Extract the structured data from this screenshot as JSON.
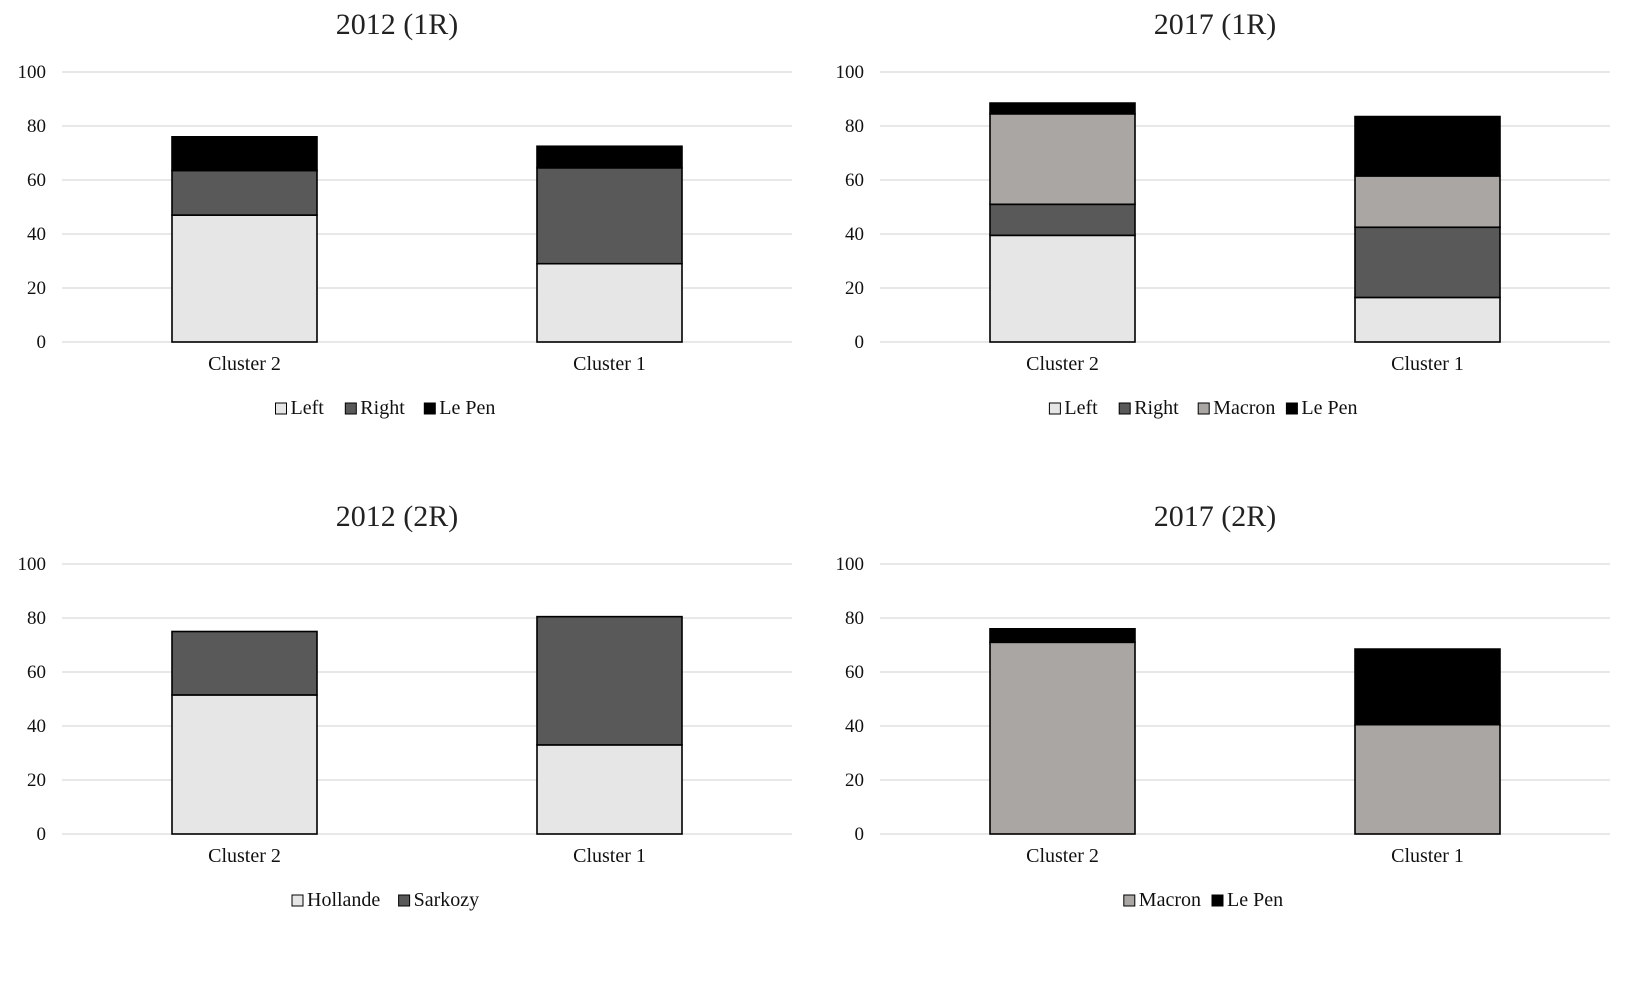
{
  "colors": {
    "Left": "#e6e6e6",
    "Hollande": "#e6e6e6",
    "Right": "#595959",
    "Sarkozy": "#595959",
    "Macron": "#aaa6a4",
    "Le Pen": "#000000"
  },
  "chart_data": [
    {
      "type": "bar",
      "stacked": true,
      "title": "2012 (1R)",
      "categories": [
        "Cluster 2",
        "Cluster 1"
      ],
      "series": [
        {
          "name": "Left",
          "values": [
            47,
            29
          ]
        },
        {
          "name": "Right",
          "values": [
            16.5,
            35.5
          ]
        },
        {
          "name": "Le Pen",
          "values": [
            12.5,
            8
          ]
        }
      ],
      "ylim": [
        0,
        100
      ],
      "yticks": [
        0,
        20,
        40,
        60,
        80,
        100
      ],
      "grid": true,
      "legend": "bottom"
    },
    {
      "type": "bar",
      "stacked": true,
      "title": "2017 (1R)",
      "categories": [
        "Cluster 2",
        "Cluster 1"
      ],
      "series": [
        {
          "name": "Left",
          "values": [
            39.5,
            16.5
          ]
        },
        {
          "name": "Right",
          "values": [
            11.5,
            26
          ]
        },
        {
          "name": "Macron",
          "values": [
            33.5,
            19
          ]
        },
        {
          "name": "Le Pen",
          "values": [
            4,
            22
          ]
        }
      ],
      "ylim": [
        0,
        100
      ],
      "yticks": [
        0,
        20,
        40,
        60,
        80,
        100
      ],
      "grid": true,
      "legend": "bottom"
    },
    {
      "type": "bar",
      "stacked": true,
      "title": "2012 (2R)",
      "categories": [
        "Cluster 2",
        "Cluster 1"
      ],
      "series": [
        {
          "name": "Hollande",
          "values": [
            51.5,
            33
          ]
        },
        {
          "name": "Sarkozy",
          "values": [
            23.5,
            47.5
          ]
        }
      ],
      "ylim": [
        0,
        100
      ],
      "yticks": [
        0,
        20,
        40,
        60,
        80,
        100
      ],
      "grid": true,
      "legend": "bottom"
    },
    {
      "type": "bar",
      "stacked": true,
      "title": "2017 (2R)",
      "categories": [
        "Cluster 2",
        "Cluster 1"
      ],
      "series": [
        {
          "name": "Macron",
          "values": [
            71,
            40.5
          ]
        },
        {
          "name": "Le Pen",
          "values": [
            5,
            28
          ]
        }
      ],
      "ylim": [
        0,
        100
      ],
      "yticks": [
        0,
        20,
        40,
        60,
        80,
        100
      ],
      "grid": true,
      "legend": "bottom"
    }
  ]
}
